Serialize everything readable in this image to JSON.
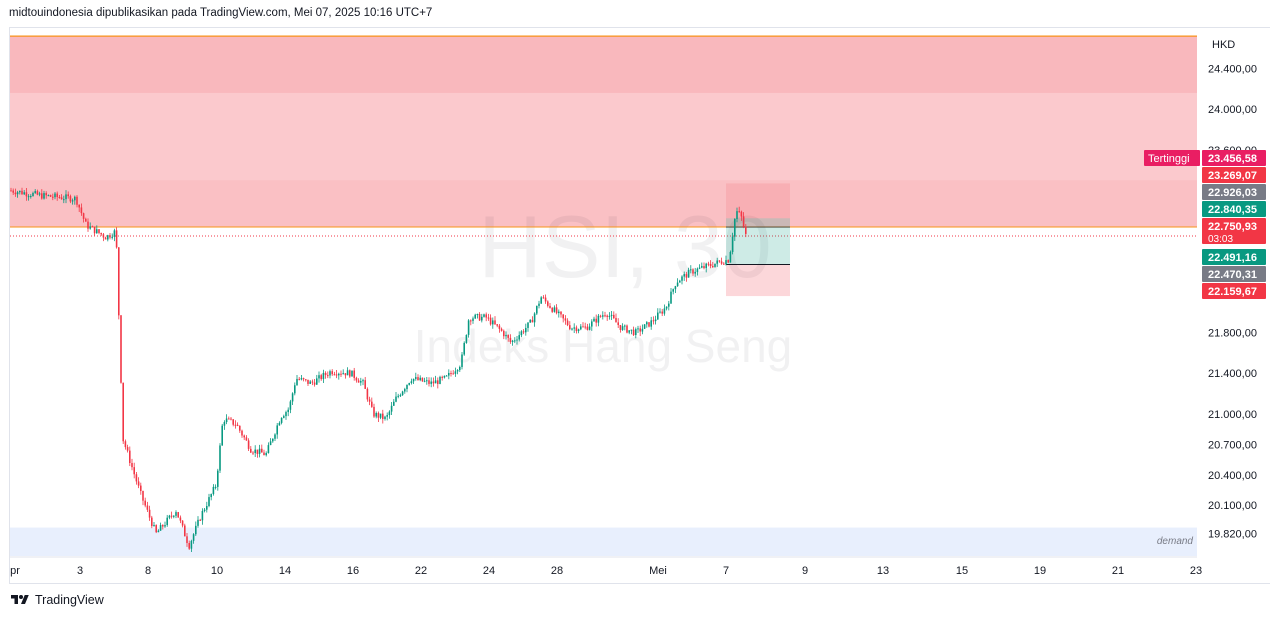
{
  "header": {
    "caption": "midtouindonesia dipublikasikan pada TradingView.com, Mei 07, 2025 10:16 UTC+7"
  },
  "footer": {
    "brand": "TradingView",
    "logo_icon": "tradingview-logo-icon"
  },
  "colors": {
    "up": "#089981",
    "down": "#f23645",
    "supply_zone": "#f9b8bd",
    "supply_zone_light": "#fbc9cd",
    "demand_zone": "#e8effd",
    "price_line": "#f7931a"
  },
  "chart_data": {
    "type": "candlestick",
    "symbol": "HSI, 30",
    "watermark_symbol": "HSI, 30",
    "watermark_name": "Indeks Hang Seng",
    "currency": "HKD",
    "ylim": [
      19600,
      24800
    ],
    "y_ticks": [
      "24.400,00",
      "24.000,00",
      "23.600,00",
      "21.800,00",
      "21.400,00",
      "21.000,00",
      "20.700,00",
      "20.400,00",
      "20.100,00",
      "19.820,00"
    ],
    "y_tick_values": [
      24400,
      24000,
      23600,
      21800,
      21400,
      21000,
      20700,
      20400,
      20100,
      19820
    ],
    "x_ticks": [
      "pr",
      "3",
      "8",
      "10",
      "14",
      "16",
      "22",
      "24",
      "28",
      "Mei",
      "7",
      "9",
      "13",
      "15",
      "19",
      "21",
      "23"
    ],
    "price_labels": [
      {
        "text": "23.456,58",
        "value": 23456.58,
        "color": "#e91e63",
        "tag": "Tertinggi"
      },
      {
        "text": "23.269,07",
        "value": 23269.07,
        "color": "#f23645"
      },
      {
        "text": "22.926,03",
        "value": 22926.03,
        "color": "#787b86"
      },
      {
        "text": "22.840,35",
        "value": 22840.35,
        "color": "#089981"
      },
      {
        "text": "22.750,93",
        "value": 22750.93,
        "color": "#f23645",
        "countdown": "03:03"
      },
      {
        "text": "22.491,16",
        "value": 22491.16,
        "color": "#089981"
      },
      {
        "text": "22.470,31",
        "value": 22470.31,
        "color": "#787b86"
      },
      {
        "text": "22.159,67",
        "value": 22159.67,
        "color": "#f23645"
      }
    ],
    "zones": [
      {
        "name": "supply-zone-upper",
        "from": 24160,
        "to": 24720
      },
      {
        "name": "supply-zone-lower",
        "from": 22840,
        "to": 24160
      },
      {
        "name": "demand-zone",
        "label": "demand",
        "from": 19600,
        "to": 19880
      }
    ],
    "resistance_line": 24720,
    "current_price": 22750.93,
    "position_tool": {
      "entry": 22470.31,
      "target": 22926.03,
      "stop": 22159.67,
      "upper_top": 23269.07
    },
    "path_points": [
      [
        0,
        23200
      ],
      [
        30,
        23150
      ],
      [
        65,
        23120
      ],
      [
        75,
        22860
      ],
      [
        95,
        22740
      ],
      [
        105,
        22800
      ],
      [
        112,
        20750
      ],
      [
        130,
        20200
      ],
      [
        145,
        19820
      ],
      [
        165,
        20050
      ],
      [
        178,
        19700
      ],
      [
        190,
        20000
      ],
      [
        205,
        20300
      ],
      [
        212,
        20950
      ],
      [
        225,
        20900
      ],
      [
        240,
        20650
      ],
      [
        255,
        20600
      ],
      [
        270,
        20980
      ],
      [
        278,
        21050
      ],
      [
        285,
        21350
      ],
      [
        300,
        21300
      ],
      [
        320,
        21420
      ],
      [
        340,
        21400
      ],
      [
        352,
        21300
      ],
      [
        362,
        21000
      ],
      [
        375,
        20950
      ],
      [
        385,
        21150
      ],
      [
        400,
        21350
      ],
      [
        420,
        21300
      ],
      [
        435,
        21350
      ],
      [
        450,
        21500
      ],
      [
        458,
        21950
      ],
      [
        475,
        21950
      ],
      [
        492,
        21800
      ],
      [
        500,
        21700
      ],
      [
        520,
        21900
      ],
      [
        530,
        22150
      ],
      [
        545,
        22000
      ],
      [
        560,
        21850
      ],
      [
        575,
        21850
      ],
      [
        595,
        22000
      ],
      [
        610,
        21850
      ],
      [
        625,
        21800
      ],
      [
        640,
        21900
      ],
      [
        655,
        22050
      ],
      [
        665,
        22300
      ],
      [
        680,
        22400
      ],
      [
        695,
        22450
      ],
      [
        710,
        22500
      ],
      [
        718,
        22520
      ],
      [
        725,
        23000
      ],
      [
        730,
        22950
      ],
      [
        735,
        22750
      ]
    ]
  }
}
